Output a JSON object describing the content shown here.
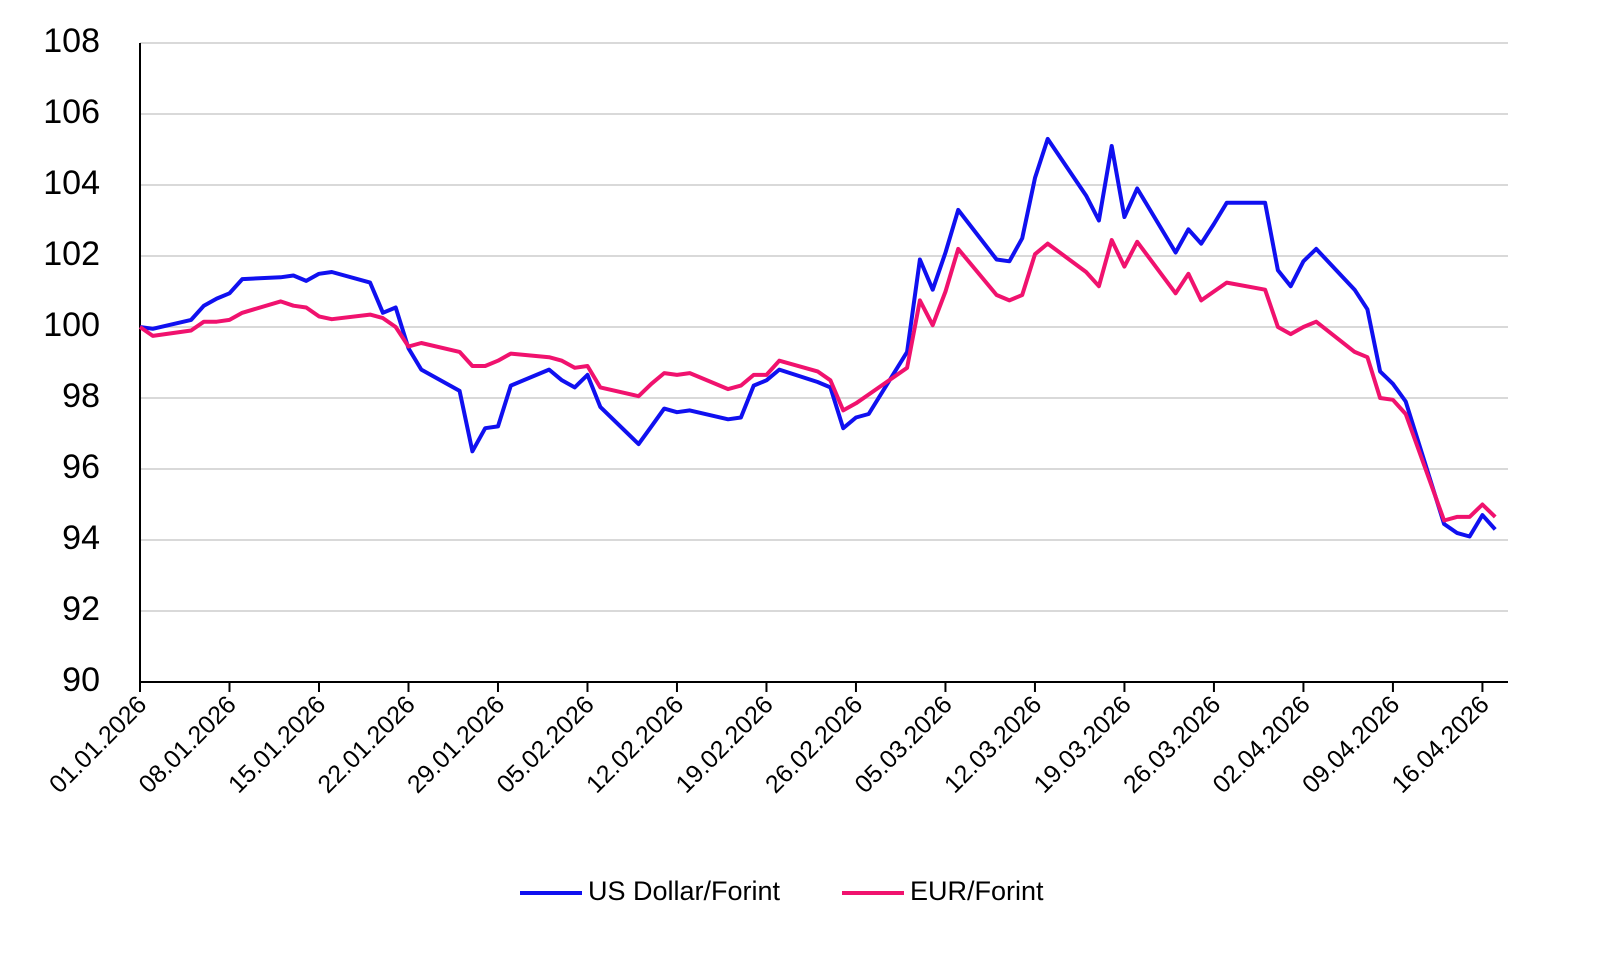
{
  "chart_data": {
    "type": "line",
    "x": [
      "01.01.2026",
      "02.01.2026",
      "05.01.2026",
      "06.01.2026",
      "07.01.2026",
      "08.01.2026",
      "09.01.2026",
      "12.01.2026",
      "13.01.2026",
      "14.01.2026",
      "15.01.2026",
      "16.01.2026",
      "19.01.2026",
      "20.01.2026",
      "21.01.2026",
      "22.01.2026",
      "23.01.2026",
      "26.01.2026",
      "27.01.2026",
      "28.01.2026",
      "29.01.2026",
      "30.01.2026",
      "02.02.2026",
      "03.02.2026",
      "04.02.2026",
      "05.02.2026",
      "06.02.2026",
      "09.02.2026",
      "10.02.2026",
      "11.02.2026",
      "12.02.2026",
      "13.02.2026",
      "16.02.2026",
      "17.02.2026",
      "18.02.2026",
      "19.02.2026",
      "20.02.2026",
      "23.02.2026",
      "24.02.2026",
      "25.02.2026",
      "26.02.2026",
      "27.02.2026",
      "02.03.2026",
      "03.03.2026",
      "04.03.2026",
      "05.03.2026",
      "06.03.2026",
      "09.03.2026",
      "10.03.2026",
      "11.03.2026",
      "12.03.2026",
      "13.03.2026",
      "16.03.2026",
      "17.03.2026",
      "18.03.2026",
      "19.03.2026",
      "20.03.2026",
      "23.03.2026",
      "24.03.2026",
      "25.03.2026",
      "26.03.2026",
      "27.03.2026",
      "30.03.2026",
      "31.03.2026",
      "01.04.2026",
      "02.04.2026",
      "03.04.2026",
      "06.04.2026",
      "07.04.2026",
      "08.04.2026",
      "09.04.2026",
      "10.04.2026",
      "13.04.2026",
      "14.04.2026",
      "15.04.2026",
      "16.04.2026",
      "17.04.2026"
    ],
    "series": [
      {
        "name": "US Dollar/Forint",
        "color": "#1010f0",
        "values": [
          100.0,
          99.95,
          100.2,
          100.6,
          100.8,
          100.95,
          101.35,
          101.4,
          101.45,
          101.3,
          101.5,
          101.55,
          101.25,
          100.4,
          100.55,
          99.4,
          98.8,
          98.2,
          96.5,
          97.15,
          97.2,
          98.35,
          98.8,
          98.5,
          98.3,
          98.65,
          97.75,
          96.7,
          97.2,
          97.7,
          97.6,
          97.65,
          97.4,
          97.45,
          98.35,
          98.5,
          98.8,
          98.45,
          98.3,
          97.15,
          97.45,
          97.55,
          99.3,
          101.9,
          101.05,
          102.1,
          103.3,
          101.9,
          101.85,
          102.5,
          104.2,
          105.3,
          103.7,
          103.0,
          105.1,
          103.1,
          103.9,
          102.1,
          102.75,
          102.35,
          102.9,
          103.5,
          103.5,
          101.6,
          101.15,
          101.85,
          102.2,
          101.05,
          100.5,
          98.75,
          98.4,
          97.9,
          94.45,
          94.2,
          94.1,
          94.7,
          94.3
        ]
      },
      {
        "name": "EUR/Forint",
        "color": "#f0126e",
        "values": [
          100.0,
          99.75,
          99.9,
          100.15,
          100.15,
          100.2,
          100.4,
          100.72,
          100.6,
          100.55,
          100.3,
          100.22,
          100.35,
          100.25,
          100.0,
          99.45,
          99.55,
          99.3,
          98.9,
          98.9,
          99.05,
          99.25,
          99.15,
          99.05,
          98.85,
          98.9,
          98.3,
          98.05,
          98.4,
          98.7,
          98.65,
          98.7,
          98.25,
          98.35,
          98.65,
          98.65,
          99.05,
          98.75,
          98.5,
          97.65,
          97.85,
          98.1,
          98.85,
          100.75,
          100.05,
          101.0,
          102.2,
          100.9,
          100.75,
          100.9,
          102.05,
          102.35,
          101.55,
          101.15,
          102.45,
          101.7,
          102.4,
          100.95,
          101.5,
          100.75,
          101.0,
          101.25,
          101.05,
          100.0,
          99.8,
          100.0,
          100.15,
          99.3,
          99.15,
          98.0,
          97.95,
          97.55,
          94.55,
          94.65,
          94.65,
          95.0,
          94.65
        ]
      }
    ],
    "xlim": [
      "01.01.2026",
      "18.04.2026"
    ],
    "xticks": [
      "01.01.2026",
      "08.01.2026",
      "15.01.2026",
      "22.01.2026",
      "29.01.2026",
      "05.02.2026",
      "12.02.2026",
      "19.02.2026",
      "26.02.2026",
      "05.03.2026",
      "12.03.2026",
      "19.03.2026",
      "26.03.2026",
      "02.04.2026",
      "09.04.2026",
      "16.04.2026"
    ],
    "ylim": [
      90,
      108
    ],
    "yticks": [
      90,
      92,
      94,
      96,
      98,
      100,
      102,
      104,
      106,
      108
    ],
    "grid": true
  }
}
